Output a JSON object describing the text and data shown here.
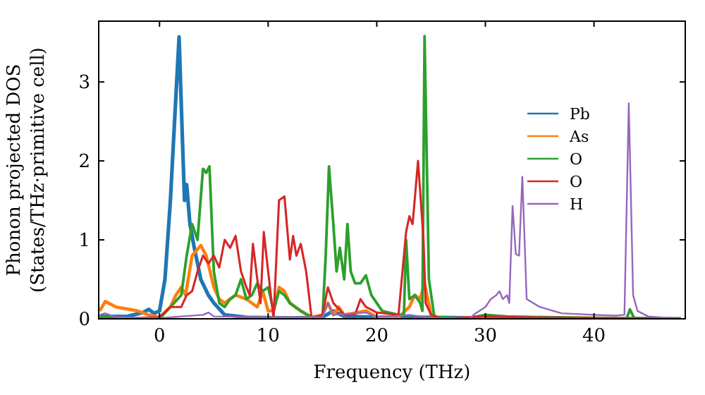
{
  "chart_data": {
    "type": "line",
    "xlabel": "Frequency (THz)",
    "ylabel": "Phonon projected DOS\n(States/THz·primitive cell)",
    "xlim": [
      -5.6,
      48.4
    ],
    "ylim": [
      0,
      3.77
    ],
    "xticks": [
      0,
      10,
      20,
      30,
      40
    ],
    "yticks": [
      0,
      1,
      2,
      3
    ],
    "grid": false,
    "legend": "right",
    "marker": "none",
    "line_style": "solid",
    "series": [
      {
        "name": "Pb",
        "color": "#1f77b4",
        "x": [
          -5.5,
          -3,
          -1.5,
          -1,
          -0.5,
          0,
          0.5,
          1,
          1.5,
          1.8,
          2.1,
          2.3,
          2.5,
          2.8,
          3.2,
          3.8,
          4.5,
          5,
          6,
          8,
          12,
          15,
          16,
          17,
          20,
          24,
          30,
          48
        ],
        "values": [
          0.03,
          0.03,
          0.08,
          0.12,
          0.07,
          0.1,
          0.5,
          1.5,
          2.8,
          3.57,
          2.3,
          1.5,
          1.7,
          1.2,
          0.9,
          0.5,
          0.3,
          0.2,
          0.05,
          0.02,
          0.01,
          0.02,
          0.1,
          0.03,
          0.02,
          0.02,
          0.01,
          0
        ]
      },
      {
        "name": "As",
        "color": "#ff7f0e",
        "x": [
          -5.5,
          -5,
          -4,
          -2,
          -1,
          0,
          1,
          1.5,
          2,
          2.4,
          3,
          3.8,
          4.3,
          5,
          5.5,
          6,
          7,
          8,
          9,
          9.5,
          10,
          10.5,
          11,
          11.5,
          12,
          13,
          14,
          15,
          15.5,
          16,
          16.5,
          17,
          19,
          20,
          22,
          23,
          23.5,
          24,
          24.4,
          25,
          26,
          30,
          48
        ],
        "values": [
          0.1,
          0.22,
          0.15,
          0.1,
          0.05,
          0.02,
          0.15,
          0.3,
          0.4,
          0.3,
          0.8,
          0.93,
          0.8,
          0.4,
          0.25,
          0.2,
          0.3,
          0.25,
          0.15,
          0.35,
          0.1,
          0.1,
          0.4,
          0.35,
          0.2,
          0.1,
          0.02,
          0.05,
          0.2,
          0.05,
          0.15,
          0.05,
          0.1,
          0.02,
          0.02,
          0.15,
          0.3,
          0.25,
          0.45,
          0.05,
          0,
          0.02,
          0
        ]
      },
      {
        "name": "O",
        "color": "#2ca02c",
        "x": [
          -5.5,
          0,
          1,
          2,
          2.5,
          3,
          3.5,
          4,
          4.3,
          4.6,
          5,
          5.5,
          6,
          6.5,
          7,
          7.5,
          8,
          8.5,
          9,
          9.5,
          10,
          10.5,
          11,
          11.5,
          12,
          13,
          14,
          15,
          15.3,
          15.6,
          16,
          16.3,
          16.6,
          17,
          17.3,
          17.6,
          18,
          18.5,
          19,
          19.5,
          20.5,
          22,
          22.5,
          22.7,
          23,
          23.5,
          24,
          24.2,
          24.4,
          24.8,
          25.3,
          28,
          30,
          32,
          43,
          43.3,
          43.7,
          48
        ],
        "values": [
          0.02,
          0,
          0.15,
          0.3,
          0.8,
          1.2,
          1.0,
          1.9,
          1.85,
          1.93,
          0.6,
          0.2,
          0.15,
          0.25,
          0.3,
          0.5,
          0.25,
          0.3,
          0.45,
          0.35,
          0.4,
          0.1,
          0.35,
          0.3,
          0.2,
          0.1,
          0.02,
          0,
          0.8,
          1.93,
          1.2,
          0.6,
          0.9,
          0.5,
          1.2,
          0.6,
          0.45,
          0.45,
          0.55,
          0.3,
          0.1,
          0.05,
          0.05,
          1.0,
          0.25,
          0.3,
          0.2,
          0.1,
          3.58,
          0.5,
          0.02,
          0,
          0.05,
          0.03,
          0,
          0.12,
          0.01,
          0
        ]
      },
      {
        "name": "O",
        "color": "#d62728",
        "x": [
          -5.5,
          0,
          1,
          2,
          2.5,
          3,
          3.5,
          4,
          4.5,
          5,
          5.5,
          6,
          6.5,
          7,
          7.5,
          8,
          8.3,
          8.6,
          9,
          9.3,
          9.6,
          10,
          10.5,
          11,
          11.5,
          12,
          12.3,
          12.6,
          13,
          13.5,
          14,
          15,
          15.5,
          16,
          17,
          18,
          18.5,
          19,
          20,
          22,
          22.7,
          23,
          23.3,
          23.8,
          24.3,
          24.5,
          25,
          26,
          30,
          33,
          48
        ],
        "values": [
          0,
          0.02,
          0.15,
          0.15,
          0.3,
          0.35,
          0.6,
          0.8,
          0.7,
          0.8,
          0.65,
          1.0,
          0.9,
          1.05,
          0.6,
          0.4,
          0.3,
          0.95,
          0.5,
          0.2,
          1.1,
          0.6,
          0,
          1.5,
          1.55,
          0.75,
          1.05,
          0.8,
          0.95,
          0.6,
          0.01,
          0.05,
          0.4,
          0.2,
          0.05,
          0.05,
          0.25,
          0.15,
          0.08,
          0.05,
          1.1,
          1.3,
          1.2,
          2.0,
          1.0,
          0.2,
          0.05,
          0,
          0.03,
          0.02,
          0
        ]
      },
      {
        "name": "H",
        "color": "#9467bd",
        "x": [
          -5.5,
          -5,
          -4,
          0,
          4,
          4.5,
          5,
          10,
          15,
          15.5,
          16,
          19,
          20,
          23,
          25,
          28.5,
          29,
          30,
          30.5,
          31,
          31.3,
          31.6,
          32,
          32.2,
          32.5,
          32.8,
          33.1,
          33.4,
          33.8,
          35,
          37,
          40,
          42,
          42.8,
          43.2,
          43.6,
          44,
          45,
          48
        ],
        "values": [
          0.05,
          0.07,
          0.02,
          0.01,
          0.05,
          0.08,
          0.03,
          0.02,
          0.02,
          0.2,
          0.05,
          0.08,
          0.02,
          0.05,
          0.01,
          0,
          0.06,
          0.15,
          0.25,
          0.3,
          0.35,
          0.25,
          0.3,
          0.2,
          1.43,
          0.82,
          0.8,
          1.8,
          0.25,
          0.15,
          0.07,
          0.05,
          0.04,
          0.05,
          2.73,
          0.3,
          0.1,
          0.03,
          0
        ]
      }
    ]
  }
}
